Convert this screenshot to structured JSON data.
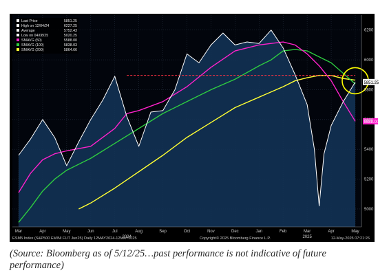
{
  "chart_data": {
    "type": "line",
    "title": "",
    "x_months": [
      "Mar",
      "Apr",
      "May",
      "Jun",
      "Jul",
      "Aug",
      "Sep",
      "Oct",
      "Nov",
      "Dec",
      "Jan",
      "Feb",
      "Mar",
      "Apr",
      "May"
    ],
    "year_labels": [
      "2024",
      "2025"
    ],
    "y_ticks": [
      5000,
      5200,
      5400,
      5600,
      5800,
      6000,
      6200
    ],
    "ylim": [
      4880,
      6300
    ],
    "legend": {
      "position": "top-left",
      "items": [
        {
          "label": "Last Price",
          "value": "5851.25",
          "color": "#ffffff"
        },
        {
          "label": "High on 12/04/24",
          "value": "6227.25",
          "color": "#ffffff"
        },
        {
          "label": "Average",
          "value": "5752.43",
          "color": "#ffffff"
        },
        {
          "label": "Low on 04/08/25",
          "value": "5020.25",
          "color": "#ffffff"
        },
        {
          "label": "SMAVG (50)",
          "value": "5588.00",
          "color": "#ff22cc"
        },
        {
          "label": "SMAVG (100)",
          "value": "5838.03",
          "color": "#2ecc40"
        },
        {
          "label": "SMAVG (200)",
          "value": "5864.66",
          "color": "#ffff33"
        }
      ]
    },
    "last_price_label": "5851.25",
    "sma50_label": "5588.00",
    "series": [
      {
        "name": "Last Price",
        "color": "#ffffff",
        "x": [
          0,
          0.5,
          1,
          1.5,
          2,
          2.5,
          3,
          3.5,
          4,
          4.5,
          5,
          5.5,
          6,
          6.5,
          7,
          7.5,
          8,
          8.5,
          9,
          9.5,
          10,
          10.5,
          11,
          11.5,
          12,
          12.3,
          12.5,
          12.7,
          13,
          13.5,
          14
        ],
        "y": [
          5360,
          5470,
          5600,
          5480,
          5290,
          5450,
          5600,
          5730,
          5890,
          5620,
          5420,
          5650,
          5660,
          5800,
          6040,
          5980,
          6100,
          6180,
          6100,
          6120,
          6110,
          6200,
          6080,
          5900,
          5700,
          5400,
          5020,
          5370,
          5560,
          5720,
          5851
        ]
      },
      {
        "name": "SMAVG (50)",
        "color": "#ff22cc",
        "x": [
          0,
          0.5,
          1,
          1.5,
          2,
          3,
          4,
          4.5,
          5,
          6,
          7,
          8,
          9,
          9.5,
          10,
          10.5,
          11,
          11.5,
          12,
          12.5,
          13,
          13.5,
          14
        ],
        "y": [
          5110,
          5240,
          5330,
          5370,
          5390,
          5420,
          5540,
          5640,
          5660,
          5720,
          5820,
          5950,
          6060,
          6080,
          6100,
          6110,
          6120,
          6100,
          6040,
          5960,
          5860,
          5720,
          5588
        ]
      },
      {
        "name": "SMAVG (100)",
        "color": "#2ecc40",
        "x": [
          0,
          0.5,
          1,
          1.5,
          2,
          3,
          4,
          5,
          6,
          7,
          8,
          9,
          10,
          10.5,
          11,
          11.5,
          12,
          12.5,
          13,
          13.5,
          14
        ],
        "y": [
          4910,
          5010,
          5120,
          5200,
          5260,
          5340,
          5440,
          5540,
          5640,
          5720,
          5800,
          5870,
          5960,
          6000,
          6060,
          6070,
          6060,
          6020,
          5980,
          5910,
          5838
        ]
      },
      {
        "name": "SMAVG (200)",
        "color": "#ffff33",
        "x": [
          2.5,
          3,
          4,
          5,
          6,
          7,
          8,
          9,
          10,
          11,
          11.5,
          12,
          12.5,
          13,
          13.5,
          14
        ],
        "y": [
          5000,
          5040,
          5140,
          5250,
          5360,
          5480,
          5580,
          5680,
          5750,
          5820,
          5860,
          5880,
          5896,
          5895,
          5875,
          5864
        ]
      }
    ],
    "reference_line": {
      "y": 5896,
      "x_from": 4.5,
      "x_to": 14,
      "color": "#ff3344",
      "style": "dashed"
    },
    "highlight_circle": {
      "x": 14,
      "y": 5860,
      "color": "#ffff00"
    }
  },
  "footer": {
    "left": "ESM5 Index (S&P500 EMINI FUT Jun25) Daily 12MAY2024-12MAY2025",
    "center": "Copyright© 2025 Bloomberg Finance L.P.",
    "right": "12-May-2025 07:21:26"
  },
  "caption": "(Source: Bloomberg as of 5/12/25…past performance is not indicative of future performance)"
}
